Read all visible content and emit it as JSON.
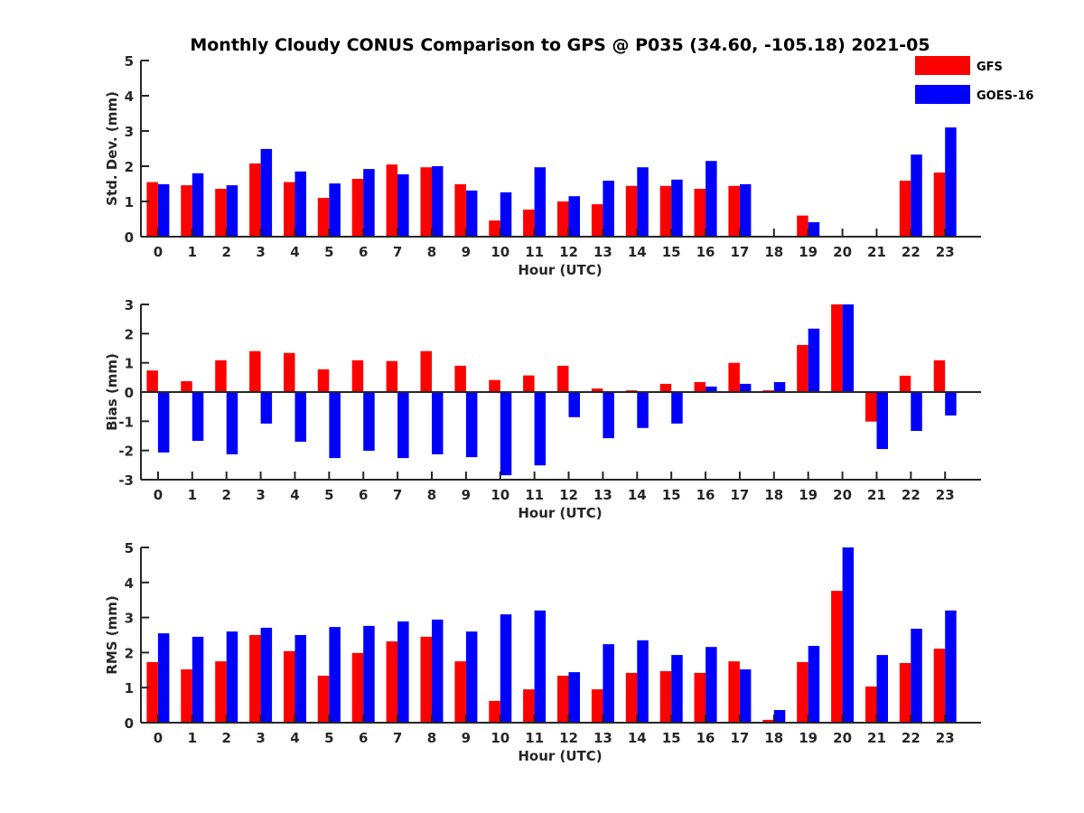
{
  "chart_data": {
    "title": "Monthly Cloudy CONUS Comparison to GPS @ P035 (34.60, -105.18) 2021-05",
    "legend": {
      "placement": "top-right",
      "entries": [
        {
          "name": "GFS",
          "color": "#ff0000"
        },
        {
          "name": "GOES-16",
          "color": "#0000ff"
        }
      ]
    },
    "panels": [
      {
        "type": "bar",
        "ylabel": "Std. Dev. (mm)",
        "xlabel": "Hour (UTC)",
        "ylim": [
          0,
          5
        ],
        "yticks": [
          "0",
          "1",
          "2",
          "3",
          "4",
          "5"
        ],
        "categories": [
          "0",
          "1",
          "2",
          "3",
          "4",
          "5",
          "6",
          "7",
          "8",
          "9",
          "10",
          "11",
          "12",
          "13",
          "14",
          "15",
          "16",
          "17",
          "18",
          "19",
          "20",
          "21",
          "22",
          "23"
        ],
        "series": [
          {
            "name": "GFS",
            "values": [
              1.55,
              1.46,
              1.36,
              2.08,
              1.55,
              1.1,
              1.64,
              2.05,
              1.97,
              1.49,
              0.46,
              0.77,
              1.0,
              0.92,
              1.44,
              1.44,
              1.36,
              1.44,
              null,
              0.6,
              null,
              null,
              1.59,
              1.82
            ]
          },
          {
            "name": "GOES-16",
            "values": [
              1.49,
              1.8,
              1.46,
              2.49,
              1.85,
              1.51,
              1.92,
              1.77,
              2.0,
              1.31,
              1.26,
              1.97,
              1.15,
              1.59,
              1.97,
              1.62,
              2.15,
              1.49,
              null,
              0.41,
              null,
              null,
              2.33,
              3.1
            ]
          }
        ]
      },
      {
        "type": "bar",
        "ylabel": "Bias (mm)",
        "xlabel": "Hour (UTC)",
        "ylim": [
          -3,
          3
        ],
        "yticks": [
          "-3",
          "-2",
          "-1",
          "0",
          "1",
          "2",
          "3"
        ],
        "categories": [
          "0",
          "1",
          "2",
          "3",
          "4",
          "5",
          "6",
          "7",
          "8",
          "9",
          "10",
          "11",
          "12",
          "13",
          "14",
          "15",
          "16",
          "17",
          "18",
          "19",
          "20",
          "21",
          "22",
          "23"
        ],
        "series": [
          {
            "name": "GFS",
            "values": [
              0.74,
              0.37,
              1.09,
              1.4,
              1.34,
              0.78,
              1.09,
              1.06,
              1.4,
              0.9,
              0.41,
              0.57,
              0.9,
              0.12,
              0.06,
              0.28,
              0.34,
              1.0,
              0.06,
              1.61,
              3.0,
              -1.01,
              0.56,
              1.09
            ]
          },
          {
            "name": "GOES-16",
            "values": [
              -2.07,
              -1.67,
              -2.13,
              -1.08,
              -1.7,
              -2.26,
              -2.01,
              -2.26,
              -2.13,
              -2.23,
              -2.85,
              -2.51,
              -0.86,
              -1.58,
              -1.23,
              -1.08,
              0.19,
              0.28,
              0.34,
              2.17,
              3.0,
              -1.95,
              -1.33,
              -0.8
            ]
          }
        ]
      },
      {
        "type": "bar",
        "ylabel": "RMS (mm)",
        "xlabel": "Hour (UTC)",
        "ylim": [
          0,
          5
        ],
        "yticks": [
          "0",
          "1",
          "2",
          "3",
          "4",
          "5"
        ],
        "categories": [
          "0",
          "1",
          "2",
          "3",
          "4",
          "5",
          "6",
          "7",
          "8",
          "9",
          "10",
          "11",
          "12",
          "13",
          "14",
          "15",
          "16",
          "17",
          "18",
          "19",
          "20",
          "21",
          "22",
          "23"
        ],
        "series": [
          {
            "name": "GFS",
            "values": [
              1.73,
              1.52,
              1.75,
              2.5,
              2.04,
              1.34,
              1.99,
              2.32,
              2.45,
              1.75,
              0.62,
              0.95,
              1.34,
              0.95,
              1.42,
              1.47,
              1.42,
              1.75,
              0.08,
              1.73,
              3.76,
              1.03,
              1.7,
              2.11
            ]
          },
          {
            "name": "GOES-16",
            "values": [
              2.55,
              2.45,
              2.6,
              2.71,
              2.5,
              2.73,
              2.76,
              2.89,
              2.94,
              2.6,
              3.09,
              3.2,
              1.44,
              2.24,
              2.35,
              1.93,
              2.16,
              1.52,
              0.36,
              2.19,
              5.0,
              1.93,
              2.68,
              3.2
            ]
          }
        ]
      }
    ]
  }
}
